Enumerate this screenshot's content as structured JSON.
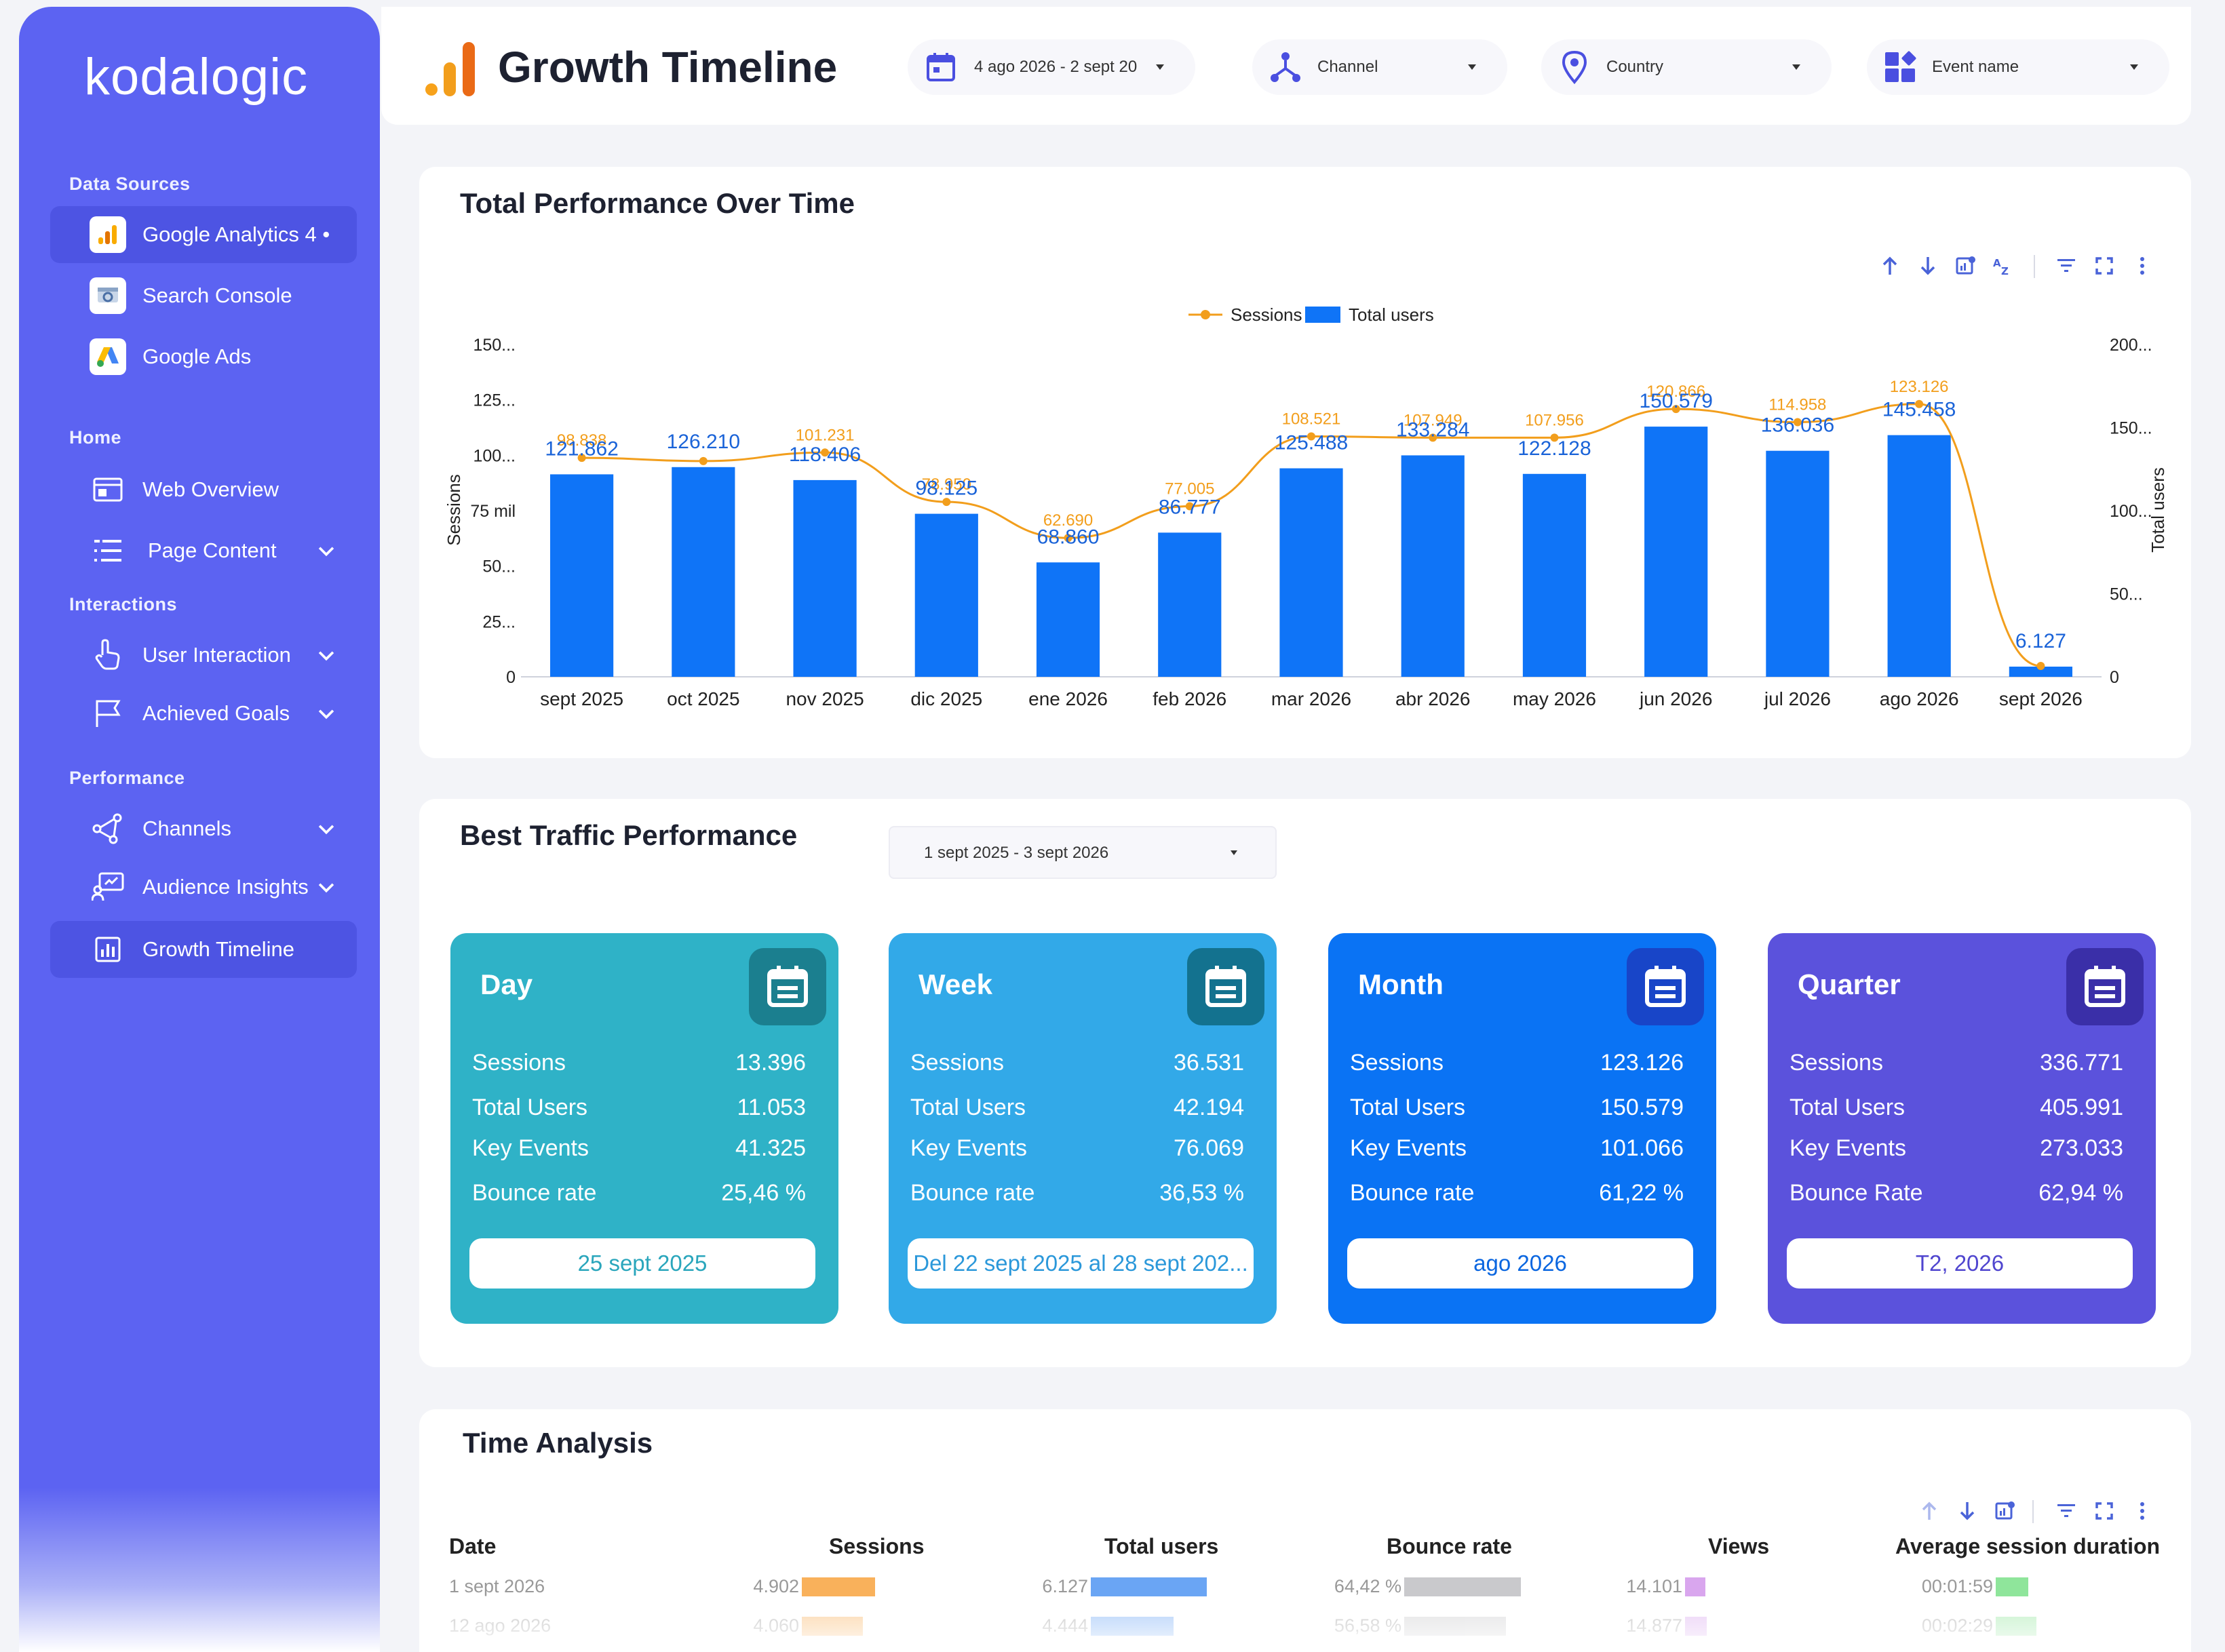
{
  "brand": "kodalogic",
  "sidebar": {
    "data_sources_title": "Data Sources",
    "data_sources": [
      {
        "label": "Google Analytics 4 •"
      },
      {
        "label": "Search Console"
      },
      {
        "label": "Google Ads"
      }
    ],
    "home_title": "Home",
    "home_items": [
      {
        "label": "Web Overview"
      },
      {
        "label": "Page Content"
      }
    ],
    "interactions_title": "Interactions",
    "interactions_items": [
      {
        "label": "User Interaction"
      },
      {
        "label": "Achieved Goals"
      }
    ],
    "performance_title": "Performance",
    "performance_items": [
      {
        "label": "Channels"
      },
      {
        "label": "Audience Insights"
      },
      {
        "label": "Growth Timeline"
      }
    ]
  },
  "header": {
    "title": "Growth Timeline",
    "filters": {
      "date": "4 ago 2026 - 2 sept 20",
      "channel": "Channel",
      "country": "Country",
      "event": "Event name"
    }
  },
  "performance_card": {
    "title": "Total Performance Over Time"
  },
  "chart_data": {
    "type": "bar",
    "title": "Total Performance Over Time",
    "legend_position": "top-center",
    "categories": [
      "sept 2025",
      "oct 2025",
      "nov 2025",
      "dic 2025",
      "ene 2026",
      "feb 2026",
      "mar 2026",
      "abr 2026",
      "may 2026",
      "jun 2026",
      "jul 2026",
      "ago 2026",
      "sept 2026"
    ],
    "series": [
      {
        "name": "Total users",
        "type": "bar",
        "axis": "right",
        "color": "#0f74f7",
        "values": [
          121862,
          126210,
          118406,
          98125,
          68860,
          86777,
          125488,
          133284,
          122128,
          150579,
          136036,
          145458,
          6127
        ],
        "labels": [
          "121.862",
          "126.210",
          "118.406",
          "98.125",
          "68.860",
          "86.777",
          "125.488",
          "133.284",
          "122.128",
          "150.579",
          "136.036",
          "145.458",
          "6.127"
        ]
      },
      {
        "name": "Sessions",
        "type": "line",
        "axis": "left",
        "color": "#f29e1c",
        "values": [
          98838,
          97400,
          101231,
          78950,
          62690,
          77005,
          108521,
          107949,
          107956,
          120866,
          114958,
          123126,
          4902
        ],
        "labels": [
          "98.838",
          "",
          "101.231",
          "78.950",
          "62.690",
          "77.005",
          "108.521",
          "107.949",
          "107.956",
          "120.866",
          "114.958",
          "123.126",
          ""
        ]
      }
    ],
    "left_axis": {
      "label": "Sessions",
      "ticks": [
        "0",
        "25...",
        "50...",
        "75 mil",
        "100...",
        "125...",
        "150..."
      ],
      "range": [
        0,
        150000
      ]
    },
    "right_axis": {
      "label": "Total users",
      "ticks": [
        "0",
        "50...",
        "100...",
        "150...",
        "200..."
      ],
      "range": [
        0,
        200000
      ]
    }
  },
  "traffic_card": {
    "title": "Best Traffic Performance",
    "date_range": "1 sept 2025 - 3 sept 2026",
    "kpis": [
      {
        "title": "Day",
        "color": "#2fb2c7",
        "icon_bg": "#1b7f8f",
        "btn_color": "#2aa6bc",
        "rows": [
          {
            "name": "Sessions",
            "value": "13.396"
          },
          {
            "name": "Total Users",
            "value": "11.053"
          },
          {
            "name": "Key Events",
            "value": "41.325"
          },
          {
            "name": "Bounce rate",
            "value": "25,46 %"
          }
        ],
        "button": "25 sept 2025"
      },
      {
        "title": "Week",
        "color": "#32a9e8",
        "icon_bg": "#13728f",
        "btn_color": "#2b98da",
        "rows": [
          {
            "name": "Sessions",
            "value": "36.531"
          },
          {
            "name": "Total Users",
            "value": "42.194"
          },
          {
            "name": "Key Events",
            "value": "76.069"
          },
          {
            "name": "Bounce rate",
            "value": "36,53 %"
          }
        ],
        "button": "Del 22 sept 2025 al 28 sept 202..."
      },
      {
        "title": "Month",
        "color": "#0a73f4",
        "icon_bg": "#1845c8",
        "btn_color": "#0a66e0",
        "rows": [
          {
            "name": "Sessions",
            "value": "123.126"
          },
          {
            "name": "Total Users",
            "value": "150.579"
          },
          {
            "name": "Key Events",
            "value": "101.066"
          },
          {
            "name": "Bounce rate",
            "value": "61,22 %"
          }
        ],
        "button": "ago 2026"
      },
      {
        "title": "Quarter",
        "color": "#5b52dc",
        "icon_bg": "#3a2fa8",
        "btn_color": "#5046cf",
        "rows": [
          {
            "name": "Sessions",
            "value": "336.771"
          },
          {
            "name": "Total Users",
            "value": "405.991"
          },
          {
            "name": "Key Events",
            "value": "273.033"
          },
          {
            "name": "Bounce Rate",
            "value": "62,94 %"
          }
        ],
        "button": "T2, 2026"
      }
    ]
  },
  "time_card": {
    "title": "Time Analysis",
    "columns": [
      "Date",
      "Sessions",
      "Total users",
      "Bounce rate",
      "Views",
      "Average session duration"
    ],
    "rows": [
      {
        "date": "1 sept 2026",
        "sessions": "4.902",
        "users": "6.127",
        "bounce": "64,42 %",
        "views": "14.101",
        "duration": "00:01:59",
        "sessions_frac": 0.54,
        "users_frac": 0.95,
        "bounce_frac": 0.86,
        "views_frac": 0.3,
        "duration_frac": 0.48
      },
      {
        "date": "12 ago 2026",
        "sessions": "4.060",
        "users": "4.444",
        "bounce": "56,58 %",
        "views": "14.877",
        "duration": "00:02:29",
        "sessions_frac": 0.45,
        "users_frac": 0.68,
        "bounce_frac": 0.75,
        "views_frac": 0.32,
        "duration_frac": 0.6
      }
    ]
  }
}
